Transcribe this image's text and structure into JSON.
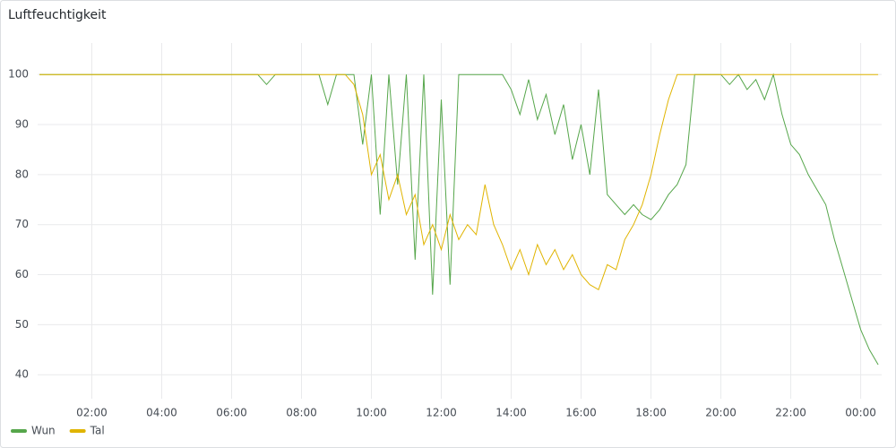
{
  "chart_data": {
    "type": "line",
    "title": "Luftfeuchtigkeit",
    "x": [
      0.5,
      0.75,
      1,
      1.25,
      1.5,
      1.75,
      2,
      2.25,
      2.5,
      2.75,
      3,
      3.25,
      3.5,
      3.75,
      4,
      4.25,
      4.5,
      4.75,
      5,
      5.25,
      5.5,
      5.75,
      6,
      6.25,
      6.5,
      6.75,
      7,
      7.25,
      7.5,
      7.75,
      8,
      8.25,
      8.5,
      8.75,
      9,
      9.25,
      9.5,
      9.75,
      10,
      10.25,
      10.5,
      10.75,
      11,
      11.25,
      11.5,
      11.75,
      12,
      12.25,
      12.5,
      12.75,
      13,
      13.25,
      13.5,
      13.75,
      14,
      14.25,
      14.5,
      14.75,
      15,
      15.25,
      15.5,
      15.75,
      16,
      16.25,
      16.5,
      16.75,
      17,
      17.25,
      17.5,
      17.75,
      18,
      18.25,
      18.5,
      18.75,
      19,
      19.25,
      19.5,
      19.75,
      20,
      20.25,
      20.5,
      20.75,
      21,
      21.25,
      21.5,
      21.75,
      22,
      22.25,
      22.5,
      22.75,
      23,
      23.25,
      23.5,
      23.75,
      24,
      24.25,
      24.5
    ],
    "series": [
      {
        "name": "Wun",
        "color": "#56a64b",
        "values": [
          100,
          100,
          100,
          100,
          100,
          100,
          100,
          100,
          100,
          100,
          100,
          100,
          100,
          100,
          100,
          100,
          100,
          100,
          100,
          100,
          100,
          100,
          100,
          100,
          100,
          100,
          98,
          100,
          100,
          100,
          100,
          100,
          100,
          94,
          100,
          100,
          100,
          86,
          100,
          72,
          100,
          78,
          100,
          63,
          100,
          56,
          95,
          58,
          100,
          100,
          100,
          100,
          100,
          100,
          97,
          92,
          99,
          91,
          96,
          88,
          94,
          83,
          90,
          80,
          97,
          76,
          74,
          72,
          74,
          72,
          71,
          73,
          76,
          78,
          82,
          100,
          100,
          100,
          100,
          98,
          100,
          97,
          99,
          95,
          100,
          92,
          86,
          84,
          80,
          77,
          74,
          67,
          61,
          55,
          49,
          45,
          42
        ]
      },
      {
        "name": "Tal",
        "color": "#e0b400",
        "values": [
          100,
          100,
          100,
          100,
          100,
          100,
          100,
          100,
          100,
          100,
          100,
          100,
          100,
          100,
          100,
          100,
          100,
          100,
          100,
          100,
          100,
          100,
          100,
          100,
          100,
          100,
          100,
          100,
          100,
          100,
          100,
          100,
          100,
          100,
          100,
          100,
          98,
          92,
          80,
          84,
          75,
          80,
          72,
          76,
          66,
          70,
          65,
          72,
          67,
          70,
          68,
          78,
          70,
          66,
          61,
          65,
          60,
          66,
          62,
          65,
          61,
          64,
          60,
          58,
          57,
          62,
          61,
          67,
          70,
          74,
          80,
          88,
          95,
          100,
          100,
          100,
          100,
          100,
          100,
          100,
          100,
          100,
          100,
          100,
          100,
          100,
          100,
          100,
          100,
          100,
          100,
          100,
          100,
          100,
          100,
          100,
          100
        ]
      }
    ],
    "xlim": [
      0.45,
      24.6
    ],
    "ylim": [
      35.2,
      106.3
    ],
    "xticks": [
      {
        "value": 2,
        "label": "02:00"
      },
      {
        "value": 4,
        "label": "04:00"
      },
      {
        "value": 6,
        "label": "06:00"
      },
      {
        "value": 8,
        "label": "08:00"
      },
      {
        "value": 10,
        "label": "10:00"
      },
      {
        "value": 12,
        "label": "12:00"
      },
      {
        "value": 14,
        "label": "14:00"
      },
      {
        "value": 16,
        "label": "16:00"
      },
      {
        "value": 18,
        "label": "18:00"
      },
      {
        "value": 20,
        "label": "20:00"
      },
      {
        "value": 22,
        "label": "22:00"
      },
      {
        "value": 24,
        "label": "00:00"
      }
    ],
    "yticks": [
      40,
      50,
      60,
      70,
      80,
      90,
      100
    ],
    "grid": true
  }
}
